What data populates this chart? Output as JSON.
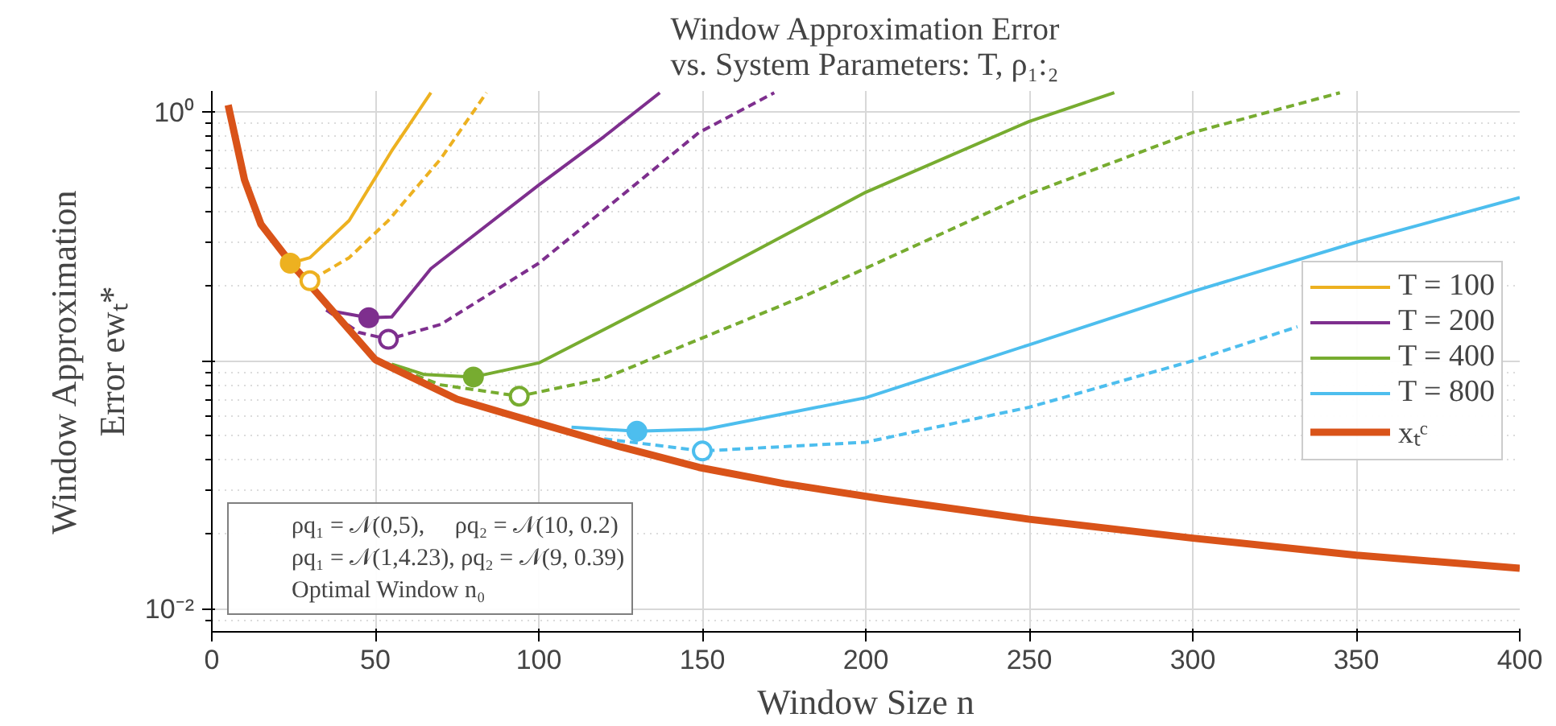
{
  "chart_data": {
    "type": "line",
    "title": "Window Approximation Error\nvs. System Parameters: T, ρ₁:₂",
    "xlabel": "Window Size n",
    "ylabel": "Window Approximation\nError ewₜ*",
    "xlim": [
      0,
      400
    ],
    "xticks": [
      0,
      50,
      100,
      150,
      200,
      250,
      300,
      350,
      400
    ],
    "ylim": [
      0.0081,
      1.22
    ],
    "yticks": [
      {
        "value": 0.01,
        "label": "10⁻²"
      },
      {
        "value": 0.1,
        "label": null
      },
      {
        "value": 1,
        "label": "10⁰"
      }
    ],
    "log": "y",
    "grid": true,
    "legend": "right",
    "marker": "none",
    "annotations": [
      "ρq₁ = 𝒩(0,5),     ρq₂ = 𝒩(10, 0.2)",
      "ρq₁ = 𝒩(1,4.23), ρq₂ = 𝒩(9, 0.39)",
      "Optimal Window n₀"
    ],
    "series": [
      {
        "name": "T = 100",
        "color": "#edb120",
        "line_style": "solid",
        "x": [
          24,
          30,
          42,
          55,
          67
        ],
        "values": [
          0.247,
          0.26,
          0.367,
          0.7,
          1.2
        ]
      },
      {
        "color": "#edb120",
        "line_style": "dashed",
        "x": [
          24,
          30,
          42,
          54,
          70,
          84
        ],
        "values": [
          0.235,
          0.21,
          0.26,
          0.367,
          0.65,
          1.2
        ]
      },
      {
        "name": "T = 200",
        "color": "#7e2f8e",
        "line_style": "solid",
        "x": [
          35,
          48,
          55,
          67,
          100,
          120,
          137
        ],
        "values": [
          0.16,
          0.149,
          0.15,
          0.235,
          0.51,
          0.8,
          1.2
        ]
      },
      {
        "color": "#7e2f8e",
        "line_style": "dashed",
        "x": [
          35,
          45,
          54,
          70,
          100,
          149,
          172
        ],
        "values": [
          0.16,
          0.13,
          0.122,
          0.14,
          0.247,
          0.83,
          1.2
        ]
      },
      {
        "name": "T = 400",
        "color": "#77ac30",
        "line_style": "solid",
        "x": [
          55,
          65,
          80,
          100,
          149,
          200,
          250,
          276
        ],
        "values": [
          0.097,
          0.088,
          0.086,
          0.098,
          0.21,
          0.477,
          0.92,
          1.2
        ]
      },
      {
        "color": "#77ac30",
        "line_style": "dashed",
        "x": [
          55,
          70,
          94,
          120,
          149,
          182,
          250,
          300,
          345
        ],
        "values": [
          0.095,
          0.08,
          0.072,
          0.085,
          0.122,
          0.184,
          0.47,
          0.83,
          1.2
        ]
      },
      {
        "name": "T = 800",
        "color": "#4dbeee",
        "line_style": "solid",
        "x": [
          110,
          130,
          151,
          200,
          250,
          300,
          350,
          400
        ],
        "values": [
          0.054,
          0.052,
          0.053,
          0.071,
          0.116,
          0.19,
          0.3,
          0.454
        ]
      },
      {
        "color": "#4dbeee",
        "line_style": "dashed",
        "x": [
          120,
          150,
          200,
          250,
          300,
          332
        ],
        "values": [
          0.0485,
          0.0433,
          0.047,
          0.065,
          0.1,
          0.137
        ]
      },
      {
        "name": "xₜᶜ",
        "color": "#d95319",
        "x": [
          5,
          10,
          15,
          25,
          50,
          75,
          100,
          125,
          149,
          175,
          205,
          250,
          300,
          350,
          400
        ],
        "values": [
          1.07,
          0.535,
          0.355,
          0.24,
          0.101,
          0.07,
          0.056,
          0.045,
          0.0372,
          0.032,
          0.0278,
          0.023,
          0.0193,
          0.0165,
          0.0146
        ]
      },
      {
        "type": "scatter",
        "marker": "circle",
        "x": [
          24,
          48,
          80,
          130
        ],
        "values": [
          0.247,
          0.149,
          0.086,
          0.052
        ],
        "colors": [
          "#edb120",
          "#7e2f8e",
          "#77ac30",
          "#4dbeee"
        ]
      },
      {
        "type": "scatter",
        "marker": "circle_open",
        "x": [
          30,
          54,
          94,
          150
        ],
        "values": [
          0.21,
          0.122,
          0.072,
          0.0433
        ],
        "colors": [
          "#edb120",
          "#7e2f8e",
          "#77ac30",
          "#4dbeee"
        ]
      }
    ]
  }
}
